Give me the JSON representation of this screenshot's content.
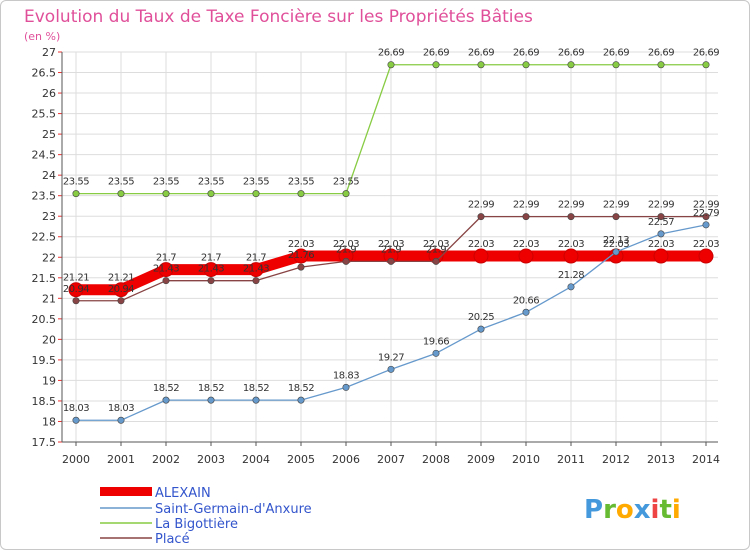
{
  "chart_data": {
    "type": "line",
    "title": "Evolution du Taux de Taxe Foncière sur les Propriétés Bâties",
    "subtitle": "(en %)",
    "x": [
      "2000",
      "2001",
      "2002",
      "2003",
      "2004",
      "2005",
      "2006",
      "2007",
      "2008",
      "2009",
      "2010",
      "2011",
      "2012",
      "2013",
      "2014"
    ],
    "ylim": [
      17.5,
      27
    ],
    "yticks": [
      "17.5",
      "18",
      "18.5",
      "19",
      "19.5",
      "20",
      "20.5",
      "21",
      "21.5",
      "22",
      "22.5",
      "23",
      "23.5",
      "24",
      "24.5",
      "25",
      "25.5",
      "26",
      "26.5",
      "27"
    ],
    "series": [
      {
        "name": "ALEXAIN",
        "color": "#ee0000",
        "values": [
          21.21,
          21.21,
          21.7,
          21.7,
          21.7,
          22.03,
          22.03,
          22.03,
          22.03,
          22.03,
          22.03,
          22.03,
          22.03,
          22.03,
          22.03
        ],
        "labels": [
          "21.21",
          "21.21",
          "21.7",
          "21.7",
          "21.7",
          "22.03",
          "22.03",
          "22.03",
          "22.03",
          "22.03",
          "22.03",
          "22.03",
          "22.03",
          "22.03",
          "22.03"
        ]
      },
      {
        "name": "Saint-Germain-d'Anxure",
        "color": "#6699cc",
        "values": [
          18.03,
          18.03,
          18.52,
          18.52,
          18.52,
          18.52,
          18.83,
          19.27,
          19.66,
          20.25,
          20.66,
          21.28,
          22.13,
          22.57,
          22.79
        ],
        "labels": [
          "18.03",
          "18.03",
          "18.52",
          "18.52",
          "18.52",
          "18.52",
          "18.83",
          "19.27",
          "19.66",
          "20.25",
          "20.66",
          "21.28",
          "22.13",
          "22.57",
          "22.79"
        ]
      },
      {
        "name": "La Bigottière",
        "color": "#88cc44",
        "values": [
          23.55,
          23.55,
          23.55,
          23.55,
          23.55,
          23.55,
          23.55,
          26.69,
          26.69,
          26.69,
          26.69,
          26.69,
          26.69,
          26.69,
          26.69
        ],
        "labels": [
          "23.55",
          "23.55",
          "23.55",
          "23.55",
          "23.55",
          "23.55",
          "23.55",
          "26.69",
          "26.69",
          "26.69",
          "26.69",
          "26.69",
          "26.69",
          "26.69",
          "26.69"
        ]
      },
      {
        "name": "Placé",
        "color": "#884444",
        "values": [
          20.94,
          20.94,
          21.43,
          21.43,
          21.43,
          21.76,
          21.9,
          21.9,
          21.9,
          22.99,
          22.99,
          22.99,
          22.99,
          22.99,
          22.99
        ],
        "labels": [
          "20.94",
          "20.94",
          "21.43",
          "21.43",
          "21.43",
          "21.76",
          "21.9",
          "21.9",
          "21.9",
          "22.99",
          "22.99",
          "22.99",
          "22.99",
          "22.99",
          "22.99"
        ]
      }
    ]
  },
  "legend": [
    {
      "label": "ALEXAIN"
    },
    {
      "label": "Saint-Germain-d'Anxure"
    },
    {
      "label": "La Bigottière"
    },
    {
      "label": "Placé"
    }
  ],
  "logo": {
    "text": "Proxiti"
  }
}
